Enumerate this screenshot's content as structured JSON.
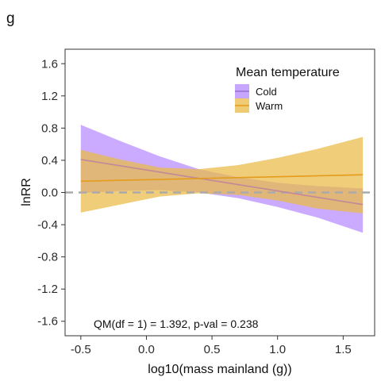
{
  "panel_label": "g",
  "colors": {
    "cold_band": "#b388ff",
    "warm_band": "#eaba45",
    "cold_line": "#9a6fd0",
    "warm_line": "#e39c1b",
    "overlap_line": "#c2889a",
    "zero_line": "#aaaaaa"
  },
  "chart_data": {
    "type": "line",
    "title": "",
    "xlabel": "log10(mass mainland (g))",
    "ylabel": "lnRR",
    "xlim": [
      -0.62,
      1.74
    ],
    "ylim": [
      -1.78,
      1.78
    ],
    "x_ticks": [
      -0.5,
      0.0,
      0.5,
      1.0,
      1.5
    ],
    "x_tick_labels": [
      "-0.5",
      "0.0",
      "0.5",
      "1.0",
      "1.5"
    ],
    "y_ticks": [
      1.6,
      1.2,
      0.8,
      0.4,
      0.0,
      -0.4,
      -0.8,
      -1.2,
      -1.6
    ],
    "y_tick_labels": [
      "1.6",
      "1.2",
      "0.8",
      "0.4",
      "0.0",
      "-0.4",
      "-0.8",
      "-1.2",
      "-1.6"
    ],
    "grid": false,
    "reference_line_y": 0.0,
    "legend": {
      "title": "Mean temperature",
      "position": "top-right",
      "entries": [
        "Cold",
        "Warm"
      ]
    },
    "annotation": "QM(df = 1) = 1.392, p-val = 0.238",
    "series": [
      {
        "name": "Cold",
        "x": [
          -0.5,
          1.65
        ],
        "y": [
          0.41,
          -0.15
        ],
        "ci_x": [
          -0.5,
          -0.2,
          0.1,
          0.4,
          0.7,
          1.0,
          1.3,
          1.65
        ],
        "ci_lower": [
          -0.01,
          0.02,
          0.03,
          0.0,
          -0.07,
          -0.18,
          -0.31,
          -0.5
        ],
        "ci_upper": [
          0.84,
          0.64,
          0.45,
          0.29,
          0.19,
          0.12,
          0.08,
          0.05
        ]
      },
      {
        "name": "Warm",
        "x": [
          -0.5,
          1.65
        ],
        "y": [
          0.14,
          0.22
        ],
        "ci_x": [
          -0.5,
          -0.2,
          0.1,
          0.4,
          0.7,
          1.0,
          1.3,
          1.65
        ],
        "ci_lower": [
          -0.25,
          -0.15,
          -0.05,
          -0.01,
          -0.03,
          -0.1,
          -0.2,
          -0.26
        ],
        "ci_upper": [
          0.53,
          0.41,
          0.31,
          0.29,
          0.34,
          0.43,
          0.54,
          0.69
        ]
      }
    ]
  }
}
